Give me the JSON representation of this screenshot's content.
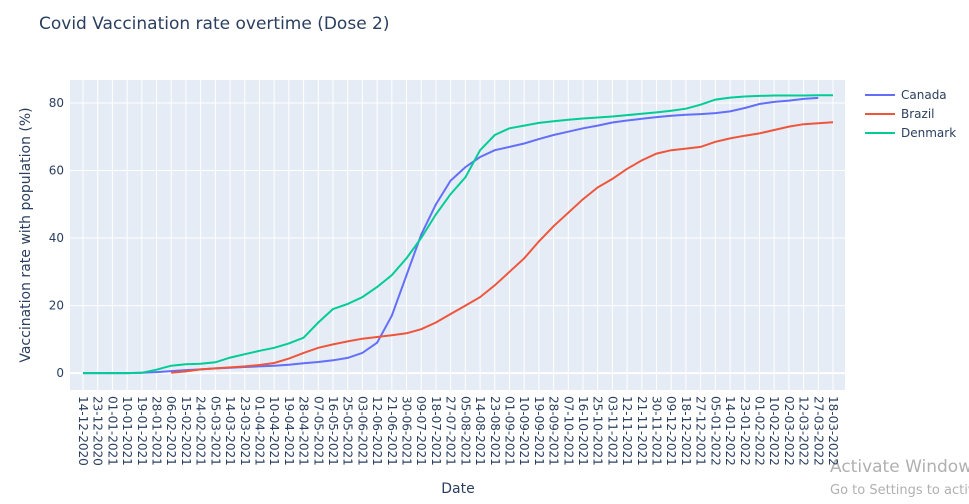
{
  "chart_data": {
    "type": "line",
    "title": "Covid Vaccination rate overtime (Dose 2)",
    "x_label": "Date",
    "y_label": "Vaccination rate with population (%)",
    "categories": [
      "14-12-2020",
      "23-12-2020",
      "01-01-2021",
      "10-01-2021",
      "19-01-2021",
      "28-01-2021",
      "06-02-2021",
      "15-02-2021",
      "24-02-2021",
      "05-03-2021",
      "14-03-2021",
      "23-03-2021",
      "01-04-2021",
      "10-04-2021",
      "19-04-2021",
      "28-04-2021",
      "07-05-2021",
      "16-05-2021",
      "25-05-2021",
      "03-06-2021",
      "12-06-2021",
      "21-06-2021",
      "30-06-2021",
      "09-07-2021",
      "18-07-2021",
      "27-07-2021",
      "05-08-2021",
      "14-08-2021",
      "23-08-2021",
      "01-09-2021",
      "10-09-2021",
      "19-09-2021",
      "28-09-2021",
      "07-10-2021",
      "16-10-2021",
      "25-10-2021",
      "03-11-2021",
      "12-11-2021",
      "21-11-2021",
      "30-11-2021",
      "09-12-2021",
      "18-12-2021",
      "27-12-2021",
      "05-01-2022",
      "14-01-2022",
      "23-01-2022",
      "01-02-2022",
      "10-02-2022",
      "02-03-2022",
      "12-03-2022",
      "27-03-2022",
      "18-03-2022"
    ],
    "series": [
      {
        "name": "Canada",
        "color": "#636efa",
        "values": [
          0,
          0,
          0,
          0,
          0.1,
          0.3,
          0.6,
          0.9,
          1.1,
          1.4,
          1.6,
          1.8,
          2,
          2.2,
          2.5,
          2.9,
          3.3,
          3.8,
          4.5,
          6,
          9,
          17,
          29,
          41,
          50,
          57,
          61,
          64,
          66,
          67,
          68,
          69.3,
          70.5,
          71.5,
          72.5,
          73.3,
          74.2,
          74.8,
          75.3,
          75.8,
          76.2,
          76.5,
          76.7,
          77,
          77.5,
          78.5,
          79.7,
          80.3,
          80.7,
          81.2,
          81.5,
          null
        ]
      },
      {
        "name": "Brazil",
        "color": "#ef553b",
        "values": [
          null,
          null,
          null,
          null,
          null,
          null,
          0.1,
          0.5,
          1.1,
          1.4,
          1.7,
          2,
          2.4,
          3,
          4.3,
          6,
          7.5,
          8.5,
          9.4,
          10.2,
          10.7,
          11.2,
          11.8,
          13,
          15,
          17.5,
          20,
          22.5,
          26,
          30,
          34,
          39,
          43.5,
          47.5,
          51.5,
          55,
          57.5,
          60.5,
          63,
          65,
          66,
          66.5,
          67,
          68.5,
          69.5,
          70.3,
          71,
          72,
          73,
          73.7,
          74,
          74.3
        ]
      },
      {
        "name": "Denmark",
        "color": "#00cc96",
        "values": [
          0,
          0,
          0,
          0,
          0.1,
          1,
          2.2,
          2.6,
          2.8,
          3.2,
          4.6,
          5.6,
          6.6,
          7.5,
          8.8,
          10.5,
          15,
          19,
          20.5,
          22.5,
          25.5,
          29,
          34,
          40,
          47,
          53,
          58,
          66,
          70.5,
          72.5,
          73.3,
          74.1,
          74.6,
          75,
          75.4,
          75.7,
          76,
          76.4,
          76.8,
          77.2,
          77.7,
          78.3,
          79.5,
          81,
          81.6,
          81.9,
          82.1,
          82.2,
          82.2,
          82.2,
          82.3,
          82.3
        ]
      }
    ],
    "ylim": [
      -5,
      86.8
    ],
    "yticks": [
      0,
      20,
      40,
      60,
      80
    ],
    "grid": true,
    "legend": "top-right"
  },
  "watermark": {
    "line1": "Activate Windows",
    "line2": "Go to Settings to activate Windows."
  }
}
